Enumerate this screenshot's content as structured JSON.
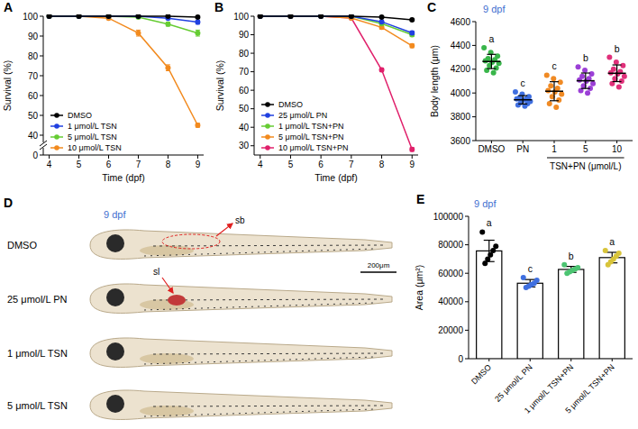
{
  "panel_letters": [
    "A",
    "B",
    "C",
    "D",
    "E"
  ],
  "chart_data": [
    {
      "type": "line",
      "y_label": "Survival (%)",
      "x_label": "Time (dpf)",
      "x": [
        4,
        5,
        6,
        7,
        8,
        9
      ],
      "xlim": [
        3.8,
        9.2
      ],
      "xticks": [
        4,
        5,
        6,
        7,
        8,
        9
      ],
      "ylim": [
        0,
        100
      ],
      "yticks": [
        0,
        40,
        50,
        60,
        70,
        80,
        90,
        100
      ],
      "legend": "lower left",
      "marker": "circle",
      "series": [
        {
          "name": "DMSO",
          "color": "#000000",
          "values": [
            100,
            100,
            100,
            100,
            100,
            99.5
          ],
          "errors": [
            0,
            0,
            0,
            0,
            0,
            0.5
          ]
        },
        {
          "name": "1 μmol/L TSN",
          "color": "#2040e0",
          "values": [
            100,
            100,
            100,
            100,
            99,
            97
          ],
          "errors": [
            0,
            0,
            0,
            0,
            0.5,
            1
          ]
        },
        {
          "name": "5 μmol/L TSN",
          "color": "#66cc33",
          "values": [
            100,
            100,
            100,
            99.5,
            96,
            91.5
          ],
          "errors": [
            0,
            0,
            0,
            0.5,
            1,
            1.5
          ]
        },
        {
          "name": "10 μmol/L TSN",
          "color": "#f28a1e",
          "values": [
            100,
            100,
            99,
            91.5,
            74,
            45
          ],
          "errors": [
            0,
            0,
            0.5,
            1.5,
            1.5,
            1
          ]
        }
      ]
    },
    {
      "type": "line",
      "y_label": "Survival (%)",
      "x_label": "Time (dpf)",
      "x": [
        4,
        5,
        6,
        7,
        8,
        9
      ],
      "xlim": [
        3.8,
        9.2
      ],
      "xticks": [
        4,
        5,
        6,
        7,
        8,
        9
      ],
      "ylim": [
        25,
        100
      ],
      "yticks": [
        30,
        40,
        50,
        60,
        70,
        80,
        90,
        100
      ],
      "legend": "lower left",
      "marker": "circle",
      "series": [
        {
          "name": "DMSO",
          "color": "#000000",
          "values": [
            100,
            100,
            100,
            100,
            99.5,
            98
          ],
          "errors": [
            0,
            0,
            0,
            0,
            0.5,
            0.5
          ]
        },
        {
          "name": "25 μmol/L PN",
          "color": "#2040e0",
          "values": [
            100,
            100,
            100,
            100,
            97,
            91
          ],
          "errors": [
            0,
            0,
            0,
            0,
            0.5,
            1
          ]
        },
        {
          "name": "1 μmol/L TSN+PN",
          "color": "#66cc33",
          "values": [
            100,
            100,
            100,
            100,
            96,
            90
          ],
          "errors": [
            0,
            0,
            0,
            0,
            0.5,
            1
          ]
        },
        {
          "name": "5 μmol/L TSN+PN",
          "color": "#f28a1e",
          "values": [
            100,
            100,
            100,
            99,
            94,
            84
          ],
          "errors": [
            0,
            0,
            0,
            0.5,
            1,
            1
          ]
        },
        {
          "name": "10 μmol/L TSN+PN",
          "color": "#e0206b",
          "values": [
            100,
            100,
            100,
            99,
            71,
            28
          ],
          "errors": [
            0,
            0,
            0,
            0.5,
            1,
            1
          ]
        }
      ]
    },
    {
      "type": "dot",
      "title": "9 dpf",
      "y_label": "Body length (μm)",
      "categories": [
        "DMSO",
        "PN",
        "1",
        "5",
        "10"
      ],
      "x_group": {
        "label": "TSN+PN (μmol/L)",
        "from": 2,
        "to": 4
      },
      "ylim": [
        3600,
        4600
      ],
      "yticks": [
        3600,
        3800,
        4000,
        4200,
        4400,
        4600
      ],
      "colors": [
        "#39b54a",
        "#3f6fe0",
        "#f08a24",
        "#9b3fd6",
        "#e0307a"
      ],
      "values": [
        4265,
        3943,
        4015,
        4103,
        4166
      ],
      "errors": [
        60,
        35,
        80,
        65,
        70
      ],
      "annotations": [
        "a",
        "c",
        "c",
        "b",
        "b"
      ],
      "points": [
        [
          4380,
          4340,
          4310,
          4290,
          4280,
          4270,
          4260,
          4250,
          4230,
          4210,
          4190,
          4170
        ],
        [
          4010,
          3990,
          3970,
          3960,
          3950,
          3950,
          3940,
          3930,
          3920,
          3910,
          3900,
          3890
        ],
        [
          4150,
          4120,
          4090,
          4060,
          4040,
          4020,
          4010,
          3990,
          3970,
          3940,
          3910,
          3880
        ],
        [
          4220,
          4190,
          4160,
          4140,
          4120,
          4110,
          4100,
          4080,
          4060,
          4040,
          4020,
          4000
        ],
        [
          4300,
          4260,
          4230,
          4200,
          4180,
          4170,
          4160,
          4140,
          4120,
          4100,
          4080,
          4050
        ]
      ]
    },
    {
      "type": "bar",
      "title": "9 dpf",
      "y_label": "Area (μm²)",
      "categories": [
        "DMSO",
        "25 μmol/L PN",
        "1 μmol/L TSN+PN",
        "5 μmol/L TSN+PN"
      ],
      "ylim": [
        0,
        100000
      ],
      "yticks": [
        0,
        20000,
        40000,
        60000,
        80000,
        100000
      ],
      "color": "#ffffff",
      "colors": [
        "#000000",
        "#3f6fe0",
        "#4cc472",
        "#d8c43a"
      ],
      "values": [
        75700,
        53000,
        62700,
        71000
      ],
      "errors": [
        7500,
        2600,
        2100,
        3700
      ],
      "annotations": [
        "a",
        "c",
        "b",
        "a"
      ],
      "points": [
        [
          89000,
          79000,
          76000,
          73000,
          70000,
          67000
        ],
        [
          57000,
          55000,
          53000,
          52000,
          51000,
          50000
        ],
        [
          66000,
          64000,
          63000,
          62000,
          61000,
          60000
        ],
        [
          76000,
          74000,
          72000,
          70000,
          68000,
          66000
        ]
      ]
    }
  ],
  "image_panel": {
    "title": "9 dpf",
    "rows": [
      "DMSO",
      "25 μmol/L PN",
      "1 μmol/L TSN",
      "5 μmol/L TSN"
    ],
    "annotations": [
      "sb",
      "sl"
    ],
    "scale_bar": "200μm"
  }
}
